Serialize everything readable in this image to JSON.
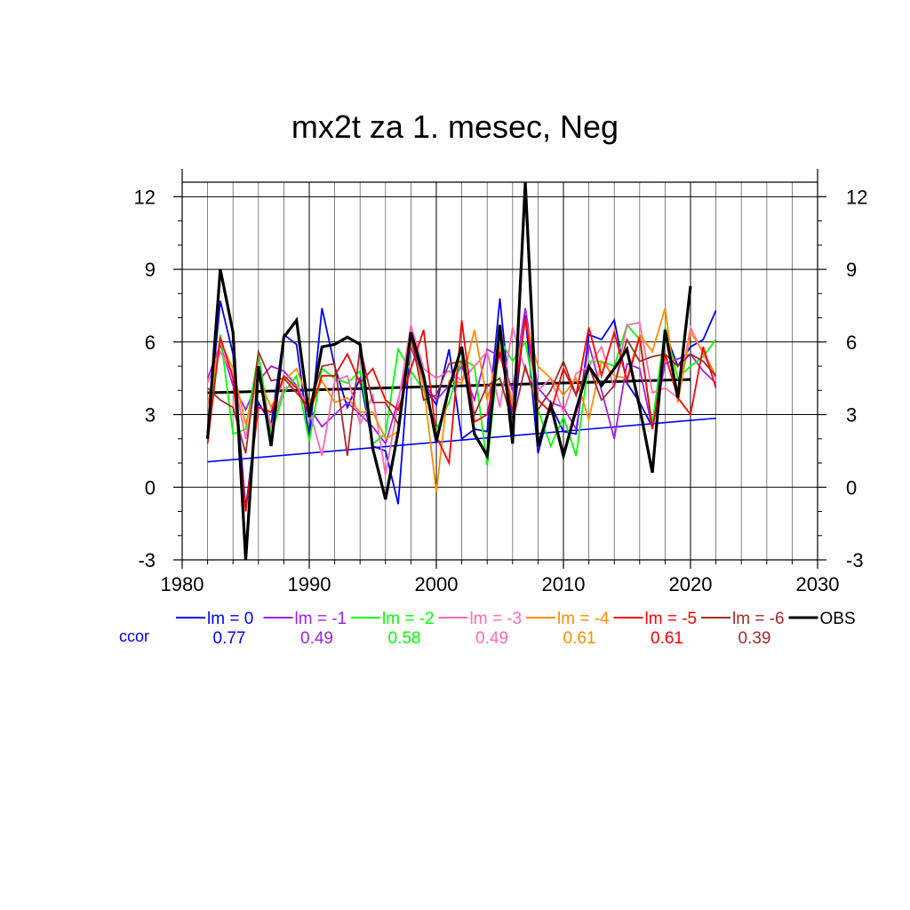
{
  "chart_data": {
    "type": "line",
    "title": "mx2t za 1. mesec, Neg",
    "xlabel": "",
    "ylabel": "",
    "xlim": [
      1980,
      2030
    ],
    "ylim": [
      -3,
      12.6
    ],
    "x_ticks": [
      1980,
      1990,
      2000,
      2010,
      2020,
      2030
    ],
    "y_ticks": [
      -3,
      0,
      3,
      6,
      9,
      12
    ],
    "grid": true,
    "x": [
      1982,
      1983,
      1984,
      1985,
      1986,
      1987,
      1988,
      1989,
      1990,
      1991,
      1992,
      1993,
      1994,
      1995,
      1996,
      1997,
      1998,
      1999,
      2000,
      2001,
      2002,
      2003,
      2004,
      2005,
      2006,
      2007,
      2008,
      2009,
      2010,
      2011,
      2012,
      2013,
      2014,
      2015,
      2016,
      2017,
      2018,
      2019,
      2020,
      2021,
      2022
    ],
    "series": [
      {
        "name": "lm = 0",
        "color": "#0000ff",
        "values": [
          2.2,
          7.7,
          5.5,
          -0.9,
          3.5,
          2.6,
          6.3,
          5.9,
          2.0,
          7.4,
          5.0,
          3.3,
          4.5,
          1.7,
          1.5,
          -0.7,
          6.2,
          4.2,
          3.4,
          5.7,
          2.0,
          2.4,
          2.3,
          7.8,
          2.5,
          7.1,
          1.4,
          3.4,
          2.3,
          2.2,
          6.3,
          6.1,
          6.9,
          4.3,
          3.5,
          2.5,
          6.4,
          5.0,
          5.8,
          6.1,
          7.3
        ],
        "trend": [
          1.05,
          2.85
        ]
      },
      {
        "name": "lm = -1",
        "color": "#a020f0",
        "values": [
          4.5,
          5.9,
          4.2,
          3.2,
          4.4,
          5.0,
          4.8,
          4.2,
          3.3,
          2.5,
          3.0,
          3.5,
          3.0,
          2.5,
          1.8,
          3.6,
          5.8,
          4.3,
          3.6,
          4.2,
          5.0,
          3.6,
          5.7,
          5.4,
          4.0,
          7.4,
          4.1,
          3.5,
          3.3,
          2.4,
          5.9,
          4.0,
          2.0,
          5.1,
          4.9,
          2.4,
          5.1,
          5.3,
          5.5,
          4.8,
          4.3
        ]
      },
      {
        "name": "lm = -2",
        "color": "#00ff00",
        "values": [
          2.3,
          6.3,
          2.2,
          2.4,
          5.5,
          2.2,
          3.9,
          4.6,
          1.9,
          4.9,
          4.5,
          4.3,
          4.8,
          1.8,
          2.2,
          5.7,
          4.8,
          4.0,
          2.4,
          3.5,
          5.3,
          5.0,
          0.9,
          6.1,
          5.2,
          6.0,
          3.2,
          1.7,
          2.9,
          1.3,
          5.2,
          5.2,
          5.0,
          6.7,
          6.1,
          2.6,
          6.6,
          4.5,
          5.0,
          5.4,
          6.1
        ]
      },
      {
        "name": "lm = -3",
        "color": "#ff69b4",
        "values": [
          4.3,
          5.6,
          4.7,
          2.0,
          4.8,
          2.5,
          4.1,
          4.2,
          3.2,
          1.3,
          4.4,
          4.6,
          2.6,
          3.8,
          0.5,
          3.5,
          6.7,
          4.9,
          4.5,
          4.8,
          4.4,
          5.0,
          5.6,
          3.3,
          6.6,
          4.8,
          4.0,
          4.5,
          3.1,
          4.7,
          5.0,
          5.8,
          4.1,
          6.7,
          6.8,
          3.9,
          4.1,
          3.7,
          6.6,
          5.5,
          4.5
        ]
      },
      {
        "name": "lm = -4",
        "color": "#ff8c00",
        "values": [
          3.4,
          6.0,
          4.9,
          2.6,
          4.5,
          3.3,
          4.4,
          4.9,
          3.5,
          4.4,
          3.5,
          3.7,
          3.1,
          3.1,
          2.0,
          2.3,
          6.0,
          4.2,
          -0.2,
          4.4,
          4.3,
          6.5,
          3.6,
          5.8,
          3.5,
          6.9,
          5.0,
          4.5,
          3.8,
          4.5,
          2.8,
          5.2,
          4.6,
          4.5,
          6.3,
          5.6,
          7.4,
          3.5,
          6.4,
          5.6,
          4.6
        ]
      },
      {
        "name": "lm = -5",
        "color": "#ff0000",
        "values": [
          1.8,
          6.2,
          4.5,
          -1.0,
          3.3,
          3.1,
          4.6,
          4.1,
          3.0,
          4.6,
          4.6,
          5.5,
          4.3,
          4.9,
          3.6,
          3.2,
          4.9,
          6.5,
          2.1,
          1.0,
          6.9,
          2.7,
          3.0,
          5.6,
          3.1,
          7.0,
          3.6,
          3.1,
          4.9,
          3.8,
          6.6,
          4.6,
          6.4,
          4.4,
          6.2,
          2.4,
          5.5,
          3.7,
          3.0,
          5.8,
          4.1
        ]
      },
      {
        "name": "lm = -6",
        "color": "#a52a2a",
        "values": [
          4.1,
          3.6,
          3.3,
          1.4,
          5.6,
          4.4,
          4.5,
          3.9,
          3.3,
          5.0,
          5.1,
          1.3,
          5.8,
          3.5,
          3.5,
          2.6,
          6.3,
          3.6,
          3.8,
          5.1,
          5.2,
          3.0,
          4.2,
          4.5,
          2.7,
          5.0,
          3.2,
          4.0,
          5.2,
          3.8,
          5.0,
          3.6,
          4.2,
          6.1,
          5.2,
          5.4,
          5.5,
          5.0,
          5.5,
          5.2,
          4.6
        ]
      },
      {
        "name": "OBS",
        "color": "#000000",
        "values": [
          2.0,
          9.0,
          6.4,
          -3.0,
          5.0,
          1.7,
          6.2,
          6.9,
          2.9,
          5.8,
          5.9,
          6.2,
          5.9,
          1.6,
          -0.5,
          2.3,
          6.4,
          4.6,
          1.9,
          4.1,
          5.8,
          2.2,
          1.3,
          6.7,
          1.8,
          12.6,
          1.7,
          3.4,
          1.3,
          3.2,
          5.0,
          4.2,
          4.9,
          5.7,
          3.3,
          0.6,
          6.5,
          3.7,
          8.3,
          null,
          null
        ],
        "trend": [
          3.9,
          4.45
        ]
      }
    ],
    "legend": {
      "placement": "bottom",
      "stat_label": "ccor",
      "stat_values": [
        "0.77",
        "0.49",
        "0.58",
        "0.49",
        "0.61",
        "0.61",
        "0.39",
        ""
      ]
    }
  }
}
